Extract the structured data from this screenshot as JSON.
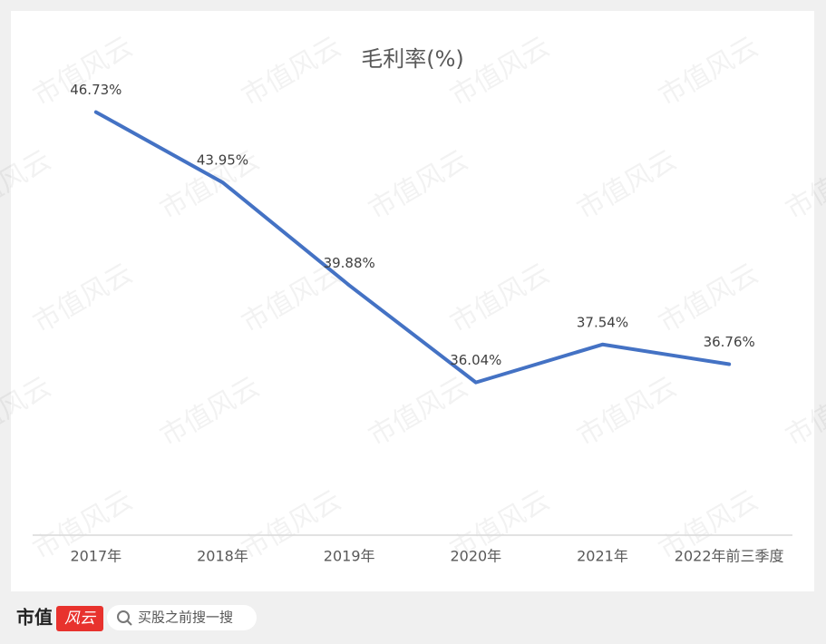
{
  "chart_data": {
    "type": "line",
    "title": "毛利率(%)",
    "categories": [
      "2017年",
      "2018年",
      "2019年",
      "2020年",
      "2021年",
      "2022年前三季度"
    ],
    "series": [
      {
        "name": "毛利率",
        "color": "#4472c4",
        "values": [
          46.73,
          43.95,
          39.88,
          36.04,
          37.54,
          36.76
        ],
        "value_labels": [
          "46.73%",
          "43.95%",
          "39.88%",
          "36.04%",
          "37.54%",
          "36.76%"
        ]
      }
    ],
    "ylim": [
      30,
      50
    ]
  },
  "watermark": "市值风云",
  "footer": {
    "logo_text": "市值",
    "logo_mark": "风云",
    "search_placeholder": "买股之前搜一搜"
  }
}
